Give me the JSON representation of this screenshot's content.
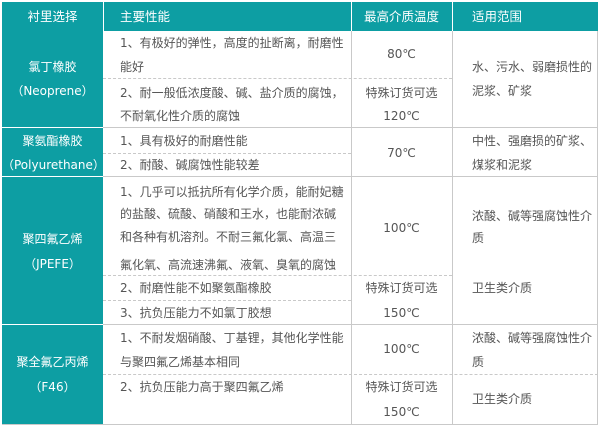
{
  "colors": {
    "header_bg": "#0d9ea3",
    "header_text": "#ffffff",
    "body_text": "#555555",
    "border": "#c9c9c9"
  },
  "header": [
    "衬里选择",
    "主要性能",
    "最高介质温度",
    "适用范围"
  ],
  "rows": [
    {
      "lining": [
        "氯丁橡胶",
        "（Neoprene）"
      ],
      "props": [
        "1、有极好的弹性，高度的扯断离，耐磨性",
        "能好",
        "2、耐一般低浓度酸、碱、盐介质的腐蚀，",
        "不耐氧化性介质的腐蚀"
      ],
      "temp": [
        "80℃",
        "特殊订货可选",
        "120℃"
      ],
      "scope": [
        "水、污水、弱磨损性的",
        "泥浆、矿浆"
      ]
    },
    {
      "lining": [
        "聚氨酯橡胶",
        "（Polyurethane）"
      ],
      "props": [
        "1、具有极好的耐磨性能",
        "2、耐酸、碱腐蚀性能较差"
      ],
      "temp": [
        "70℃"
      ],
      "scope": [
        "中性、强磨损的矿浆、",
        "煤浆和泥浆"
      ]
    },
    {
      "lining": [
        "聚四氟乙烯",
        "（JPEFE）"
      ],
      "props": [
        "1、几乎可以抵抗所有化学介质，能耐妃糖",
        "的盐酸、硫酸、硝酸和王水，也能耐浓碱",
        "和各种有机溶剂。不耐三氟化氯、高温三",
        "氟化氧、高流速沸氟、液氧、臭氧的腐蚀",
        "2、耐磨性能不如聚氨酯橡胶",
        "3、抗负压能力不如氯丁胶想"
      ],
      "temp": [
        "100℃",
        "特殊订货可选",
        "150℃"
      ],
      "scope": [
        "浓酸、碱等强腐蚀性介",
        "质",
        "卫生类介质"
      ]
    },
    {
      "lining": [
        "聚全氟乙丙烯",
        "（F46）"
      ],
      "props": [
        "1、不耐发烟硝酸、丁基锂，其他化学性能",
        "与聚四氟乙烯基本相同",
        "2、抗负压能力高于聚四氟乙烯"
      ],
      "temp": [
        "100℃",
        "特殊订货可选",
        "150℃"
      ],
      "scope": [
        "浓酸、碱等强腐蚀性介",
        "质",
        "卫生类介质"
      ]
    }
  ]
}
